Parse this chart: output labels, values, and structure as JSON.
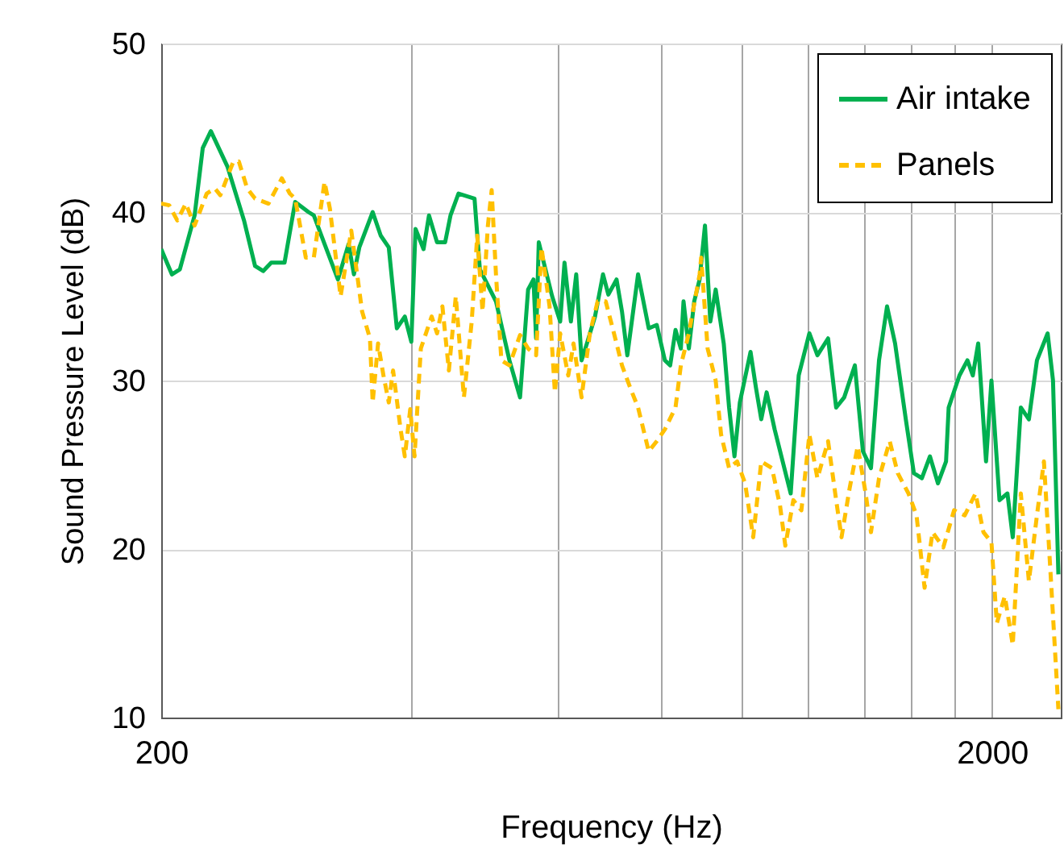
{
  "chart_data": {
    "type": "line",
    "xlabel": "Frequency (Hz)",
    "ylabel": "Sound Pressure Level  (dB)",
    "log": "x",
    "xlim": [
      200,
      2420
    ],
    "ylim": [
      10,
      50
    ],
    "xticks": [
      200,
      {
        "value": 400,
        "label": null
      },
      {
        "value": 600,
        "label": null
      },
      {
        "value": 800,
        "label": null
      },
      {
        "value": 1000,
        "label": null
      },
      {
        "value": 1200,
        "label": null
      },
      {
        "value": 1400,
        "label": null
      },
      {
        "value": 1600,
        "label": null
      },
      {
        "value": 1800,
        "label": null
      },
      2000
    ],
    "yticks": [
      10,
      20,
      30,
      40,
      50
    ],
    "grid": true,
    "legend": "top right",
    "marker": "none",
    "series": [
      {
        "name": "Air intake",
        "color": "#00b050",
        "line_style": "solid",
        "x": [
          200,
          206,
          210.6,
          219.4,
          224.4,
          229.5,
          240.3,
          251.6,
          259.4,
          265.3,
          271.3,
          281.5,
          289.9,
          300.8,
          305.3,
          314.5,
          326.4,
          336.2,
          341.2,
          346.3,
          359.4,
          367.5,
          375.8,
          384.3,
          392.9,
          400,
          404.7,
          413.8,
          420.1,
          429.6,
          439.3,
          445.9,
          455.9,
          476.6,
          483.7,
          505.8,
          525,
          540.7,
          552.9,
          561.2,
          565.3,
          569.5,
          591,
          604.3,
          611.6,
          622.5,
          631.8,
          641.2,
          650.8,
          665.6,
          680.5,
          690.6,
          706.5,
          717.2,
          727.9,
          749.9,
          772.4,
          789.8,
          807.7,
          819.7,
          831.9,
          844.3,
          850.6,
          863.3,
          876.2,
          889.4,
          902.7,
          916.2,
          929.9,
          950.9,
          965.1,
          979.6,
          994.3,
          1024.2,
          1039.5,
          1055.1,
          1070.9,
          1095,
          1119.6,
          1144.8,
          1170.5,
          1205.6,
          1232.8,
          1269.8,
          1298.5,
          1327.8,
          1367.6,
          1398.5,
          1430,
          1462.3,
          1495.2,
          1528.9,
          1575,
          1610.6,
          1646.7,
          1683.9,
          1721.8,
          1760.8,
          1773.7,
          1827.3,
          1868.4,
          1896.4,
          1925,
          1967.3,
          1997,
          2041.9,
          2087.4,
          2118.5,
          2166.4,
          2215.3,
          2265.4,
          2333.5,
          2368.5,
          2404
        ],
        "values": [
          37.8,
          36.3,
          36.6,
          39.8,
          43.8,
          44.8,
          42.7,
          39.5,
          36.8,
          36.5,
          37.0,
          37.0,
          40.6,
          40.0,
          39.8,
          38.1,
          36.0,
          38.1,
          36.3,
          37.9,
          40.0,
          38.6,
          37.9,
          33.1,
          33.8,
          32.3,
          39.0,
          37.8,
          39.8,
          38.2,
          38.2,
          39.8,
          41.1,
          40.8,
          36.6,
          34.7,
          31.2,
          29.0,
          35.4,
          36.0,
          32.5,
          38.2,
          35.0,
          33.5,
          37.0,
          33.5,
          36.3,
          31.2,
          32.2,
          33.8,
          36.3,
          35.1,
          36.0,
          34.1,
          31.5,
          36.3,
          33.1,
          33.3,
          31.2,
          30.9,
          33.0,
          31.9,
          34.7,
          31.9,
          34.7,
          36.0,
          39.2,
          33.5,
          35.4,
          32.2,
          28.4,
          25.5,
          28.7,
          31.7,
          29.6,
          27.7,
          29.3,
          27.1,
          25.2,
          23.3,
          30.3,
          32.8,
          31.5,
          32.5,
          28.4,
          29.0,
          30.9,
          25.8,
          24.8,
          31.2,
          34.4,
          32.2,
          27.7,
          24.5,
          24.2,
          25.5,
          23.9,
          25.2,
          28.4,
          30.3,
          31.2,
          30.3,
          32.2,
          25.2,
          30.0,
          22.9,
          23.3,
          20.7,
          28.4,
          27.7,
          31.2,
          32.8,
          30.0,
          18.5
        ]
      },
      {
        "name": "Panels",
        "color": "#ffc000",
        "line_style": "dashed",
        "x": [
          200,
          204.5,
          209.1,
          214.1,
          219.4,
          226.9,
          232.1,
          235.6,
          244.3,
          248,
          253.8,
          259.4,
          269.2,
          279.4,
          285.6,
          289.9,
          298.6,
          305.3,
          314.5,
          319.2,
          328.8,
          338.7,
          349,
          356.7,
          359.4,
          364.8,
          370.3,
          375.8,
          380.3,
          388.3,
          392.9,
          398.8,
          403.6,
          410.7,
          423.2,
          429.6,
          436,
          443.9,
          452.5,
          462.8,
          472.9,
          480.2,
          487.3,
          494.6,
          499.8,
          505.8,
          513.4,
          525,
          540.7,
          552.9,
          565.3,
          573.8,
          586.8,
          595.5,
          604.3,
          618,
          627.1,
          641.2,
          656.1,
          670.4,
          685.6,
          706.5,
          717.2,
          733.4,
          749.9,
          772.4,
          789.8,
          807.7,
          831.9,
          844.3,
          863.3,
          889.4,
          893.2,
          909.4,
          929.9,
          943.9,
          965.1,
          986.9,
          1008.9,
          1031.8,
          1055.1,
          1086.9,
          1111.3,
          1127.9,
          1153.2,
          1179.2,
          1205.6,
          1232.8,
          1269.8,
          1298.5,
          1318,
          1347.8,
          1378.3,
          1409.2,
          1430,
          1462.3,
          1506.3,
          1540.3,
          1586.7,
          1622.5,
          1659.1,
          1696.1,
          1747.6,
          1800.4,
          1854.6,
          1910.6,
          1953.2,
          1997,
          2026.9,
          2072.4,
          2118.5,
          2166.4,
          2215.3,
          2265.4,
          2309.6,
          2350.9,
          2404
        ],
        "values": [
          40.5,
          40.4,
          39.5,
          40.5,
          39.2,
          41.1,
          41.4,
          41.0,
          43.0,
          43.0,
          41.4,
          40.8,
          40.5,
          42.0,
          41.1,
          40.8,
          37.3,
          37.3,
          41.8,
          40.2,
          35.0,
          38.9,
          34.1,
          32.5,
          28.7,
          32.2,
          30.3,
          28.7,
          30.6,
          27.1,
          25.5,
          28.3,
          25.5,
          31.9,
          33.8,
          32.8,
          34.4,
          30.6,
          35.0,
          29.0,
          33.5,
          38.6,
          34.1,
          39.2,
          41.3,
          36.3,
          31.2,
          30.9,
          32.7,
          31.9,
          31.5,
          37.9,
          34.4,
          29.3,
          32.8,
          30.3,
          32.2,
          29.0,
          32.8,
          34.7,
          34.7,
          32.2,
          30.9,
          29.6,
          28.4,
          25.8,
          26.4,
          27.1,
          28.4,
          30.9,
          32.8,
          36.3,
          37.3,
          31.9,
          30.0,
          26.8,
          24.8,
          25.2,
          23.9,
          20.7,
          25.2,
          24.8,
          22.6,
          20.2,
          22.9,
          22.3,
          26.8,
          24.2,
          26.4,
          22.9,
          20.7,
          23.6,
          26.1,
          23.3,
          21.0,
          24.2,
          26.4,
          24.5,
          23.3,
          22.0,
          17.7,
          21.0,
          20.1,
          22.3,
          22.0,
          23.3,
          21.0,
          20.4,
          15.6,
          17.2,
          14.3,
          23.3,
          18.1,
          22.0,
          25.2,
          18.8,
          10.5
        ]
      }
    ]
  }
}
